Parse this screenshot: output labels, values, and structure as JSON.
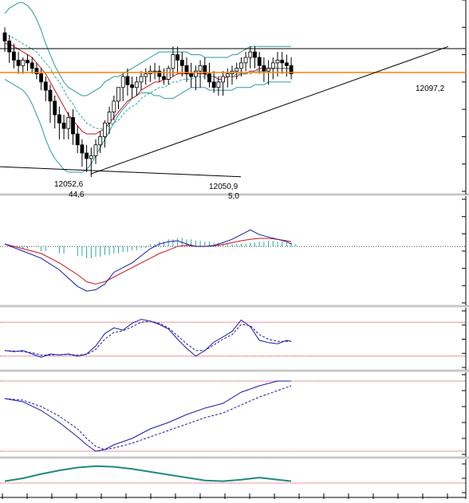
{
  "colors": {
    "background": "#ffffff",
    "separator": "#c8c8c8",
    "axis": "#000000",
    "candle_up": "#ffffff",
    "candle_down": "#000000",
    "bollinger": "#2e9a9a",
    "ma_fast": "#c8141e",
    "ma_slow": "#2aa8a0",
    "level_line": "#ff8000",
    "line_primary": "#1a1aa8",
    "line_secondary": "#1a1aa8",
    "red_dotted": "#d43030",
    "histogram": "#2aa8a0",
    "teal_line": "#1f8a80"
  },
  "chart_data": [
    {
      "type": "candlestick",
      "panel": "price",
      "annotations": {
        "resistance": "12097,2",
        "low_1": "12052,6",
        "low_1_sub": "44,6",
        "low_2": "12050,9",
        "low_2_sub": "5,0"
      },
      "ylim": [
        12045,
        12115
      ],
      "resistance_level": 12097.2,
      "support_level": 12088.5,
      "x": [
        0,
        1,
        2,
        3,
        4,
        5,
        6,
        7,
        8,
        9,
        10,
        11,
        12,
        13,
        14,
        15,
        16,
        17,
        18,
        19,
        20,
        21,
        22,
        23,
        24,
        25,
        26,
        27,
        28,
        29,
        30,
        31,
        32,
        33,
        34,
        35,
        36,
        37,
        38,
        39,
        40,
        41,
        42,
        43,
        44,
        45,
        46,
        47,
        48,
        49,
        50,
        51,
        52,
        53,
        54,
        55,
        56,
        57,
        58,
        59,
        60,
        61,
        62,
        63
      ],
      "open": [
        12103,
        12100,
        12096,
        12093,
        12091,
        12093,
        12092,
        12090,
        12088,
        12085,
        12082,
        12078,
        12073,
        12070,
        12068,
        12072,
        12066,
        12062,
        12059,
        12057,
        12058,
        12062,
        12065,
        12070,
        12074,
        12078,
        12083,
        12087,
        12084,
        12083,
        12085,
        12087,
        12088,
        12089,
        12089,
        12087,
        12086,
        12090,
        12095,
        12093,
        12091,
        12088,
        12087,
        12089,
        12091,
        12088,
        12085,
        12083,
        12085,
        12087,
        12088,
        12089,
        12090,
        12092,
        12094,
        12096,
        12094,
        12091,
        12089,
        12090,
        12092,
        12093,
        12092,
        12091
      ],
      "high": [
        12105,
        12102,
        12099,
        12096,
        12094,
        12095,
        12094,
        12092,
        12090,
        12087,
        12084,
        12080,
        12076,
        12073,
        12074,
        12075,
        12069,
        12064,
        12062,
        12061,
        12064,
        12067,
        12071,
        12076,
        12080,
        12083,
        12088,
        12090,
        12087,
        12087,
        12089,
        12090,
        12091,
        12092,
        12091,
        12090,
        12091,
        12098,
        12098,
        12096,
        12094,
        12092,
        12091,
        12093,
        12094,
        12092,
        12089,
        12087,
        12089,
        12090,
        12091,
        12092,
        12094,
        12096,
        12098,
        12098,
        12096,
        12094,
        12093,
        12094,
        12096,
        12096,
        12095,
        12094
      ],
      "low": [
        12096,
        12092,
        12090,
        12088,
        12088,
        12089,
        12088,
        12086,
        12082,
        12078,
        12070,
        12068,
        12064,
        12064,
        12064,
        12062,
        12059,
        12054,
        12052,
        12052,
        12055,
        12059,
        12061,
        12066,
        12071,
        12075,
        12078,
        12080,
        12079,
        12080,
        12082,
        12084,
        12085,
        12086,
        12085,
        12084,
        12084,
        12087,
        12088,
        12087,
        12085,
        12083,
        12082,
        12083,
        12086,
        12083,
        12081,
        12080,
        12080,
        12083,
        12084,
        12086,
        12087,
        12089,
        12090,
        12090,
        12088,
        12085,
        12084,
        12086,
        12087,
        12088,
        12087,
        12086
      ],
      "close": [
        12100,
        12096,
        12093,
        12091,
        12093,
        12092,
        12090,
        12088,
        12085,
        12082,
        12078,
        12073,
        12070,
        12068,
        12072,
        12066,
        12062,
        12059,
        12057,
        12058,
        12062,
        12065,
        12070,
        12074,
        12078,
        12083,
        12087,
        12084,
        12083,
        12085,
        12087,
        12088,
        12089,
        12089,
        12087,
        12086,
        12090,
        12095,
        12093,
        12091,
        12088,
        12087,
        12089,
        12091,
        12088,
        12085,
        12083,
        12085,
        12087,
        12088,
        12089,
        12090,
        12092,
        12094,
        12096,
        12094,
        12091,
        12089,
        12090,
        12092,
        12093,
        12092,
        12091,
        12088
      ],
      "bb_upper": [
        12110,
        12112,
        12113,
        12114,
        12114,
        12113,
        12111,
        12108,
        12104,
        12099,
        12095,
        12091,
        12088,
        12085,
        12083,
        12082,
        12081,
        12080,
        12080,
        12081,
        12082,
        12083,
        12085,
        12086,
        12087,
        12087,
        12088,
        12089,
        12090,
        12091,
        12092,
        12093,
        12094,
        12095,
        12096,
        12096,
        12096,
        12096,
        12096,
        12096,
        12096,
        12095,
        12095,
        12095,
        12094,
        12094,
        12094,
        12094,
        12094,
        12094,
        12095,
        12095,
        12096,
        12097,
        12098,
        12098,
        12098,
        12098,
        12098,
        12098,
        12098,
        12098,
        12098,
        12098
      ],
      "bb_lower": [
        12086,
        12085,
        12084,
        12083,
        12082,
        12080,
        12077,
        12073,
        12069,
        12064,
        12060,
        12057,
        12055,
        12053,
        12052,
        12052,
        12052,
        12052,
        12053,
        12055,
        12058,
        12061,
        12064,
        12067,
        12070,
        12073,
        12075,
        12077,
        12079,
        12080,
        12081,
        12081,
        12081,
        12080,
        12080,
        12079,
        12079,
        12079,
        12080,
        12081,
        12082,
        12083,
        12083,
        12083,
        12083,
        12082,
        12082,
        12082,
        12082,
        12082,
        12082,
        12083,
        12083,
        12083,
        12083,
        12084,
        12084,
        12084,
        12085,
        12085,
        12085,
        12085,
        12085,
        12085
      ],
      "ma_fast": [
        12099,
        12099,
        12098,
        12097,
        12096,
        12095,
        12094,
        12092,
        12090,
        12088,
        12085,
        12082,
        12079,
        12076,
        12073,
        12071,
        12069,
        12067,
        12066,
        12066,
        12066,
        12067,
        12068,
        12070,
        12072,
        12074,
        12076,
        12078,
        12079,
        12080,
        12082,
        12083,
        12084,
        12085,
        12085,
        12086,
        12086,
        12087,
        12088,
        12088,
        12088,
        12088,
        12088,
        12088,
        12088,
        12087,
        12087,
        12086,
        12086,
        12087,
        12087,
        12087,
        12088,
        12088,
        12089,
        12089,
        12090,
        12090,
        12090,
        12090,
        12090,
        12090,
        12090,
        12090
      ],
      "ma_slow": [
        12103,
        12102,
        12101,
        12100,
        12099,
        12098,
        12097,
        12096,
        12094,
        12092,
        12090,
        12087,
        12085,
        12082,
        12079,
        12077,
        12074,
        12072,
        12070,
        12069,
        12068,
        12068,
        12068,
        12069,
        12070,
        12071,
        12073,
        12075,
        12076,
        12077,
        12079,
        12080,
        12081,
        12082,
        12083,
        12083,
        12084,
        12085,
        12085,
        12086,
        12086,
        12086,
        12087,
        12087,
        12087,
        12087,
        12087,
        12087,
        12087,
        12087,
        12087,
        12088,
        12088,
        12088,
        12088,
        12089,
        12089,
        12089,
        12089,
        12090,
        12090,
        12090,
        12090,
        12090
      ]
    },
    {
      "type": "line",
      "panel": "macd",
      "ylim": [
        -1.2,
        1.0
      ],
      "x": [
        0,
        4,
        8,
        12,
        16,
        18,
        20,
        22,
        24,
        26,
        28,
        30,
        32,
        34,
        36,
        38,
        40,
        42,
        44,
        46,
        48,
        50,
        52,
        54,
        56,
        58,
        60,
        62,
        63
      ],
      "series": [
        {
          "values": [
            0.05,
            -0.1,
            -0.25,
            -0.5,
            -0.85,
            -0.95,
            -0.92,
            -0.8,
            -0.55,
            -0.45,
            -0.35,
            -0.2,
            -0.05,
            0.05,
            0.1,
            0.12,
            0.05,
            0.0,
            0.0,
            0.02,
            0.08,
            0.15,
            0.25,
            0.35,
            0.25,
            0.2,
            0.15,
            0.1,
            0.05
          ]
        },
        {
          "values": [
            0.05,
            -0.05,
            -0.15,
            -0.35,
            -0.6,
            -0.75,
            -0.8,
            -0.75,
            -0.65,
            -0.55,
            -0.45,
            -0.35,
            -0.25,
            -0.15,
            -0.08,
            0.0,
            0.02,
            0.0,
            0.0,
            0.01,
            0.04,
            0.08,
            0.12,
            0.15,
            0.17,
            0.17,
            0.15,
            0.12,
            0.1
          ]
        }
      ],
      "histogram": [
        0.0,
        -0.05,
        -0.1,
        -0.15,
        -0.2,
        -0.25,
        -0.22,
        -0.18,
        -0.15,
        -0.12,
        -0.08,
        -0.04,
        0.05,
        0.1,
        0.15,
        0.18,
        0.15,
        0.12,
        0.1,
        0.08,
        0.06,
        0.05,
        0.06,
        0.08,
        0.1,
        0.12,
        0.1,
        0.08,
        0.05
      ]
    },
    {
      "type": "line",
      "panel": "stochastic_1",
      "ylim": [
        0,
        100
      ],
      "bands": [
        80,
        20
      ],
      "x": [
        0,
        2,
        4,
        6,
        8,
        10,
        12,
        14,
        16,
        18,
        20,
        22,
        24,
        26,
        28,
        30,
        32,
        34,
        36,
        38,
        40,
        42,
        44,
        46,
        48,
        50,
        52,
        54,
        56,
        58,
        60,
        62,
        63
      ],
      "series": [
        {
          "values": [
            30,
            28,
            30,
            24,
            18,
            24,
            22,
            24,
            20,
            24,
            38,
            60,
            70,
            66,
            78,
            85,
            82,
            76,
            68,
            50,
            34,
            20,
            30,
            45,
            54,
            64,
            84,
            72,
            48,
            44,
            42,
            48,
            46
          ]
        },
        {
          "values": [
            30,
            29,
            28,
            26,
            22,
            22,
            23,
            23,
            22,
            23,
            32,
            50,
            62,
            65,
            72,
            80,
            82,
            78,
            70,
            56,
            42,
            30,
            30,
            40,
            50,
            58,
            76,
            74,
            58,
            50,
            46,
            46,
            46
          ]
        }
      ]
    },
    {
      "type": "line",
      "panel": "stochastic_2",
      "ylim": [
        0,
        100
      ],
      "bands": [
        92,
        4
      ],
      "x": [
        0,
        4,
        8,
        12,
        16,
        18,
        20,
        22,
        24,
        28,
        32,
        36,
        40,
        44,
        48,
        52,
        56,
        60,
        63
      ],
      "series": [
        {
          "values": [
            70,
            66,
            55,
            40,
            22,
            12,
            4,
            6,
            12,
            20,
            32,
            40,
            50,
            58,
            64,
            78,
            86,
            92,
            92
          ]
        },
        {
          "values": [
            70,
            68,
            60,
            48,
            32,
            20,
            10,
            6,
            8,
            14,
            22,
            30,
            38,
            46,
            52,
            62,
            72,
            80,
            86
          ]
        }
      ]
    },
    {
      "type": "line",
      "panel": "oscillator",
      "ylim": [
        -1,
        1
      ],
      "x": [
        0,
        4,
        8,
        12,
        16,
        20,
        24,
        28,
        32,
        36,
        40,
        44,
        48,
        52,
        56,
        60,
        63
      ],
      "series": [
        {
          "values": [
            -0.2,
            0.0,
            0.3,
            0.55,
            0.75,
            0.85,
            0.8,
            0.65,
            0.45,
            0.25,
            0.05,
            -0.15,
            -0.2,
            -0.1,
            0.05,
            -0.1,
            -0.2
          ]
        }
      ]
    }
  ]
}
